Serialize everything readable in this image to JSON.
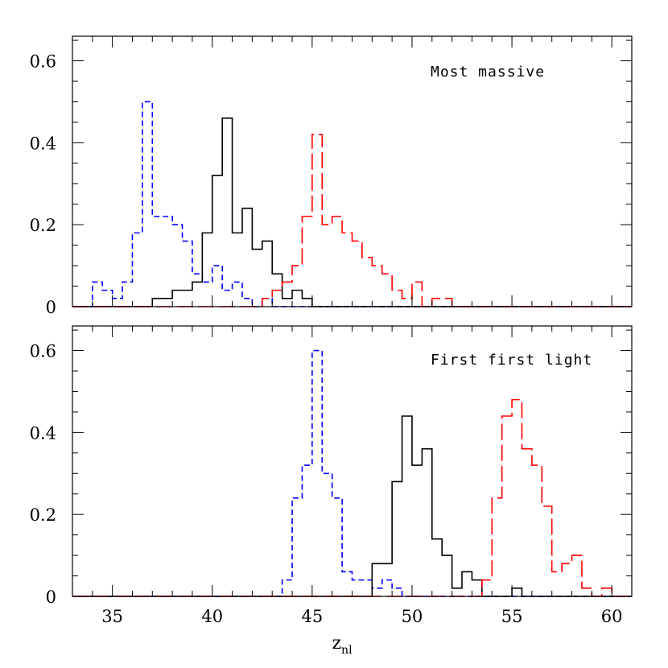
{
  "chart_data": [
    {
      "type": "histogram",
      "panel_label": "Most massive",
      "xlim": [
        33,
        61
      ],
      "ylim": [
        0,
        0.66
      ],
      "bin_width": 0.5,
      "x_ticks": [
        "35",
        "40",
        "45",
        "50",
        "55",
        "60"
      ],
      "y_ticks": [
        "0",
        "0.2",
        "0.4",
        "0.6"
      ],
      "series": [
        {
          "color": "#0000ff",
          "style": "short-dash",
          "bins": [
            [
              34.0,
              0.06
            ],
            [
              34.5,
              0.04
            ],
            [
              35.0,
              0.02
            ],
            [
              35.5,
              0.06
            ],
            [
              36.0,
              0.18
            ],
            [
              36.5,
              0.5
            ],
            [
              37.0,
              0.22
            ],
            [
              37.5,
              0.22
            ],
            [
              38.0,
              0.2
            ],
            [
              38.5,
              0.16
            ],
            [
              39.0,
              0.08
            ],
            [
              39.5,
              0.06
            ],
            [
              40.0,
              0.1
            ],
            [
              40.5,
              0.04
            ],
            [
              41.0,
              0.06
            ],
            [
              41.5,
              0.02
            ],
            [
              42.0,
              0.0
            ],
            [
              42.5,
              0.02
            ],
            [
              43.0,
              0.0
            ]
          ]
        },
        {
          "color": "#000000",
          "style": "solid",
          "bins": [
            [
              37.0,
              0.02
            ],
            [
              37.5,
              0.02
            ],
            [
              38.0,
              0.04
            ],
            [
              38.5,
              0.04
            ],
            [
              39.0,
              0.06
            ],
            [
              39.5,
              0.18
            ],
            [
              40.0,
              0.32
            ],
            [
              40.5,
              0.46
            ],
            [
              41.0,
              0.18
            ],
            [
              41.5,
              0.24
            ],
            [
              42.0,
              0.14
            ],
            [
              42.5,
              0.16
            ],
            [
              43.0,
              0.08
            ],
            [
              43.5,
              0.02
            ],
            [
              44.0,
              0.04
            ],
            [
              44.5,
              0.02
            ],
            [
              45.0,
              0.0
            ]
          ]
        },
        {
          "color": "#ff0000",
          "style": "long-dash",
          "bins": [
            [
              42.5,
              0.02
            ],
            [
              43.0,
              0.04
            ],
            [
              43.5,
              0.06
            ],
            [
              44.0,
              0.1
            ],
            [
              44.5,
              0.22
            ],
            [
              45.0,
              0.42
            ],
            [
              45.5,
              0.2
            ],
            [
              46.0,
              0.22
            ],
            [
              46.5,
              0.18
            ],
            [
              47.0,
              0.16
            ],
            [
              47.5,
              0.12
            ],
            [
              48.0,
              0.1
            ],
            [
              48.5,
              0.08
            ],
            [
              49.0,
              0.04
            ],
            [
              49.5,
              0.02
            ],
            [
              50.0,
              0.06
            ],
            [
              50.5,
              0.0
            ],
            [
              51.0,
              0.02
            ],
            [
              51.5,
              0.02
            ],
            [
              52.0,
              0.0
            ]
          ]
        }
      ]
    },
    {
      "type": "histogram",
      "panel_label": "First first light",
      "xlabel": "z",
      "xlabel_sub": "nl",
      "xlim": [
        33,
        61
      ],
      "ylim": [
        0,
        0.66
      ],
      "bin_width": 0.5,
      "x_ticks": [
        "35",
        "40",
        "45",
        "50",
        "55",
        "60"
      ],
      "y_ticks": [
        "0",
        "0.2",
        "0.4",
        "0.6"
      ],
      "series": [
        {
          "color": "#0000ff",
          "style": "short-dash",
          "bins": [
            [
              43.5,
              0.04
            ],
            [
              44.0,
              0.24
            ],
            [
              44.5,
              0.32
            ],
            [
              45.0,
              0.6
            ],
            [
              45.5,
              0.3
            ],
            [
              46.0,
              0.24
            ],
            [
              46.5,
              0.06
            ],
            [
              47.0,
              0.04
            ],
            [
              47.5,
              0.04
            ],
            [
              48.0,
              0.02
            ],
            [
              48.5,
              0.04
            ],
            [
              49.0,
              0.02
            ]
          ]
        },
        {
          "color": "#000000",
          "style": "solid",
          "bins": [
            [
              48.0,
              0.08
            ],
            [
              48.5,
              0.08
            ],
            [
              49.0,
              0.28
            ],
            [
              49.5,
              0.44
            ],
            [
              50.0,
              0.32
            ],
            [
              50.5,
              0.36
            ],
            [
              51.0,
              0.14
            ],
            [
              51.5,
              0.1
            ],
            [
              52.0,
              0.02
            ],
            [
              52.5,
              0.06
            ],
            [
              53.0,
              0.04
            ],
            [
              53.5,
              0.0
            ],
            [
              54.0,
              0.0
            ],
            [
              54.5,
              0.0
            ],
            [
              55.0,
              0.02
            ],
            [
              55.5,
              0.0
            ]
          ]
        },
        {
          "color": "#ff0000",
          "style": "long-dash",
          "bins": [
            [
              53.5,
              0.04
            ],
            [
              54.0,
              0.24
            ],
            [
              54.5,
              0.44
            ],
            [
              55.0,
              0.48
            ],
            [
              55.5,
              0.36
            ],
            [
              56.0,
              0.32
            ],
            [
              56.5,
              0.22
            ],
            [
              57.0,
              0.06
            ],
            [
              57.5,
              0.08
            ],
            [
              58.0,
              0.1
            ],
            [
              58.5,
              0.02
            ],
            [
              59.0,
              0.0
            ],
            [
              59.5,
              0.02
            ],
            [
              60.0,
              0.0
            ]
          ]
        }
      ]
    }
  ]
}
